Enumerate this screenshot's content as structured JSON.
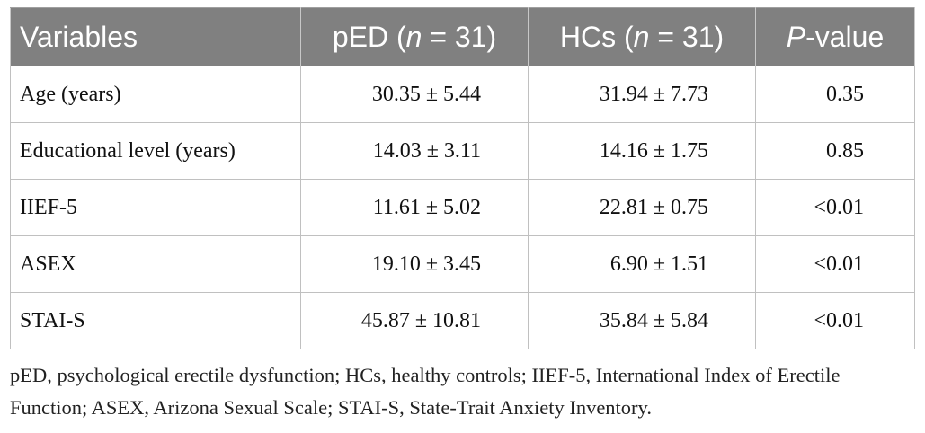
{
  "table": {
    "headers": {
      "variables": "Variables",
      "ped_prefix": "pED (",
      "ped_n": "n",
      "ped_suffix": " = 31)",
      "hcs_prefix": "HCs (",
      "hcs_n": "n",
      "hcs_suffix": " = 31)",
      "p_italic": "P",
      "p_suffix": "-value"
    },
    "rows": [
      {
        "variable": "Age (years)",
        "ped": "30.35 ± 5.44",
        "hcs": "31.94 ± 7.73",
        "p": "0.35"
      },
      {
        "variable": "Educational level (years)",
        "ped": "14.03 ± 3.11",
        "hcs": "14.16 ± 1.75",
        "p": "0.85"
      },
      {
        "variable": "IIEF-5",
        "ped": "11.61 ± 5.02",
        "hcs": "22.81 ± 0.75",
        "p": "<0.01"
      },
      {
        "variable": "ASEX",
        "ped": "19.10 ± 3.45",
        "hcs": "6.90 ± 1.51",
        "p": "<0.01"
      },
      {
        "variable": "STAI-S",
        "ped": "45.87 ± 10.81",
        "hcs": "35.84 ± 5.84",
        "p": "<0.01"
      }
    ]
  },
  "footnote": "pED, psychological erectile dysfunction; HCs, healthy controls; IIEF-5, International Index of Erectile Function; ASEX, Arizona Sexual Scale; STAI-S, State-Trait Anxiety Inventory."
}
